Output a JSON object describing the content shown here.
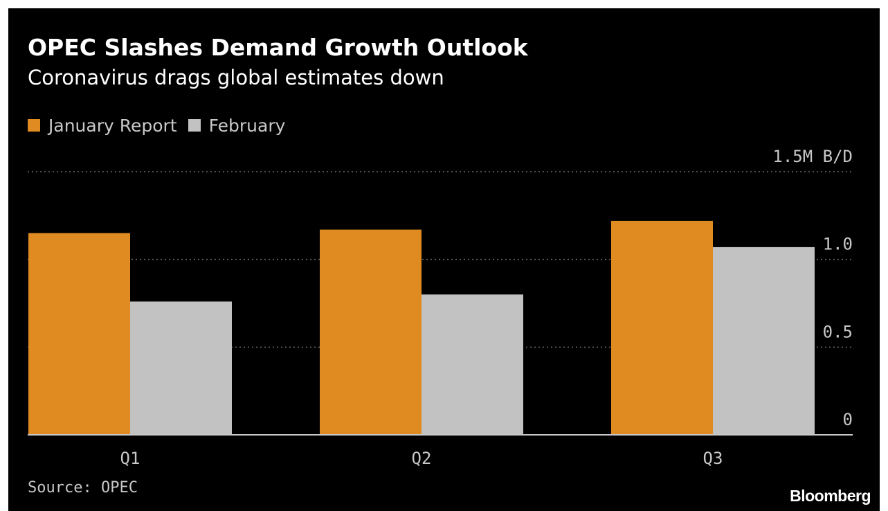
{
  "chart_data": {
    "type": "bar",
    "title": "OPEC Slashes Demand Growth Outlook",
    "subtitle": "Coronavirus drags global estimates down",
    "categories": [
      "Q1",
      "Q2",
      "Q3"
    ],
    "series": [
      {
        "name": "January Report",
        "color": "#e08a22",
        "values": [
          1.15,
          1.17,
          1.22
        ]
      },
      {
        "name": "February",
        "color": "#c2c2c2",
        "values": [
          0.76,
          0.8,
          1.07
        ]
      }
    ],
    "yticks": [
      {
        "value": 1.5,
        "label": "1.5M B/D"
      },
      {
        "value": 1.0,
        "label": "1.0"
      },
      {
        "value": 0.5,
        "label": "0.5"
      },
      {
        "value": 0,
        "label": "0"
      }
    ],
    "ylim": [
      0,
      1.5
    ],
    "grid": true,
    "legend_position": "top-left",
    "source": "Source: OPEC",
    "brand": "Bloomberg"
  }
}
